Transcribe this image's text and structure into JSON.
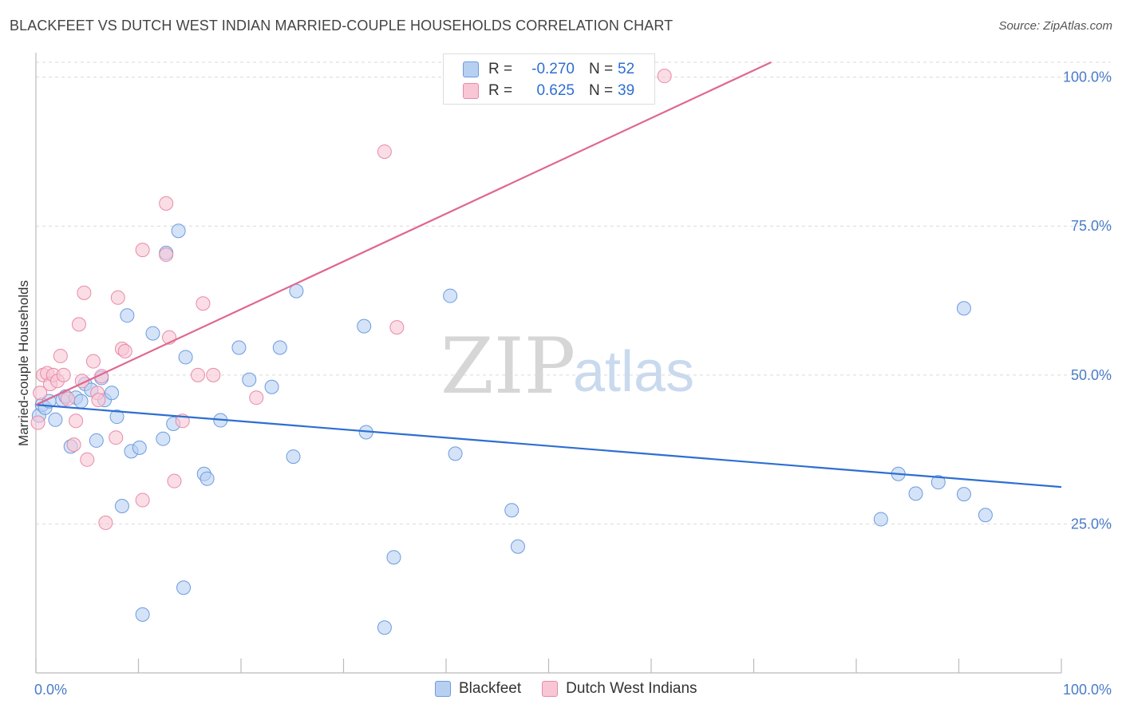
{
  "header": {
    "title": "BLACKFEET VS DUTCH WEST INDIAN MARRIED-COUPLE HOUSEHOLDS CORRELATION CHART",
    "source": "Source: ZipAtlas.com"
  },
  "watermark": {
    "zip": "ZIP",
    "atlas": "atlas"
  },
  "legend": {
    "rows": [
      {
        "r_label": "R =",
        "r_value": "-0.270",
        "n_label": "N =",
        "n_value": "52"
      },
      {
        "r_label": "R =",
        "r_value": "0.625",
        "n_label": "N =",
        "n_value": "39"
      }
    ]
  },
  "bottom_legend": {
    "series1": "Blackfeet",
    "series2": "Dutch West Indians"
  },
  "chart_data": {
    "type": "scatter",
    "title": "BLACKFEET VS DUTCH WEST INDIAN MARRIED-COUPLE HOUSEHOLDS CORRELATION CHART",
    "xlabel": "",
    "ylabel": "Married-couple Households",
    "xlim": [
      0,
      100
    ],
    "ylim": [
      0,
      102.5
    ],
    "x_tick_labels": [
      "0.0%",
      "100.0%"
    ],
    "y_ticks": [
      25,
      50,
      75,
      100
    ],
    "y_tick_labels": [
      "25.0%",
      "50.0%",
      "75.0%",
      "100.0%"
    ],
    "grid": true,
    "colors": {
      "blackfeet_fill": "#b7d0f2",
      "blackfeet_stroke": "#6c9be0",
      "blackfeet_line": "#2e6fd0",
      "dutch_fill": "#f8c6d5",
      "dutch_stroke": "#e88aa8",
      "dutch_line": "#e0678e",
      "tick": "#4a7cc9",
      "grid": "#d9d9d9"
    },
    "series": [
      {
        "name": "Blackfeet",
        "r": -0.27,
        "n": 52,
        "trend": {
          "x": [
            0,
            100
          ],
          "y": [
            45.0,
            31.2
          ]
        },
        "points": [
          {
            "x": 0.3,
            "y": 43.2
          },
          {
            "x": 0.6,
            "y": 45.0
          },
          {
            "x": 0.9,
            "y": 44.5
          },
          {
            "x": 1.3,
            "y": 45.6
          },
          {
            "x": 1.9,
            "y": 42.5
          },
          {
            "x": 2.6,
            "y": 45.8
          },
          {
            "x": 2.9,
            "y": 46.4
          },
          {
            "x": 3.4,
            "y": 38.0
          },
          {
            "x": 3.9,
            "y": 46.2
          },
          {
            "x": 4.4,
            "y": 45.6
          },
          {
            "x": 4.8,
            "y": 48.5
          },
          {
            "x": 5.4,
            "y": 47.5
          },
          {
            "x": 5.9,
            "y": 39.0
          },
          {
            "x": 6.4,
            "y": 49.5
          },
          {
            "x": 6.7,
            "y": 45.8
          },
          {
            "x": 7.4,
            "y": 47.0
          },
          {
            "x": 7.9,
            "y": 43.0
          },
          {
            "x": 8.4,
            "y": 28.0
          },
          {
            "x": 8.9,
            "y": 60.0
          },
          {
            "x": 9.3,
            "y": 37.2
          },
          {
            "x": 10.1,
            "y": 37.8
          },
          {
            "x": 10.4,
            "y": 9.8
          },
          {
            "x": 11.4,
            "y": 57.0
          },
          {
            "x": 12.4,
            "y": 39.3
          },
          {
            "x": 12.7,
            "y": 70.5
          },
          {
            "x": 13.4,
            "y": 41.8
          },
          {
            "x": 13.9,
            "y": 74.2
          },
          {
            "x": 14.4,
            "y": 14.3
          },
          {
            "x": 14.6,
            "y": 53.0
          },
          {
            "x": 16.4,
            "y": 33.4
          },
          {
            "x": 16.7,
            "y": 32.6
          },
          {
            "x": 18.0,
            "y": 42.4
          },
          {
            "x": 19.8,
            "y": 54.6
          },
          {
            "x": 20.8,
            "y": 49.2
          },
          {
            "x": 23.0,
            "y": 48.0
          },
          {
            "x": 23.8,
            "y": 54.6
          },
          {
            "x": 25.1,
            "y": 36.3
          },
          {
            "x": 25.4,
            "y": 64.1
          },
          {
            "x": 32.0,
            "y": 58.2
          },
          {
            "x": 32.2,
            "y": 40.4
          },
          {
            "x": 34.0,
            "y": 7.6
          },
          {
            "x": 34.9,
            "y": 19.4
          },
          {
            "x": 40.4,
            "y": 63.3
          },
          {
            "x": 40.9,
            "y": 36.8
          },
          {
            "x": 46.4,
            "y": 27.3
          },
          {
            "x": 47.0,
            "y": 21.2
          },
          {
            "x": 82.4,
            "y": 25.8
          },
          {
            "x": 84.1,
            "y": 33.4
          },
          {
            "x": 85.8,
            "y": 30.1
          },
          {
            "x": 88.0,
            "y": 32.0
          },
          {
            "x": 90.5,
            "y": 61.2
          },
          {
            "x": 90.5,
            "y": 30.0
          },
          {
            "x": 92.6,
            "y": 26.5
          }
        ]
      },
      {
        "name": "Dutch West Indians",
        "r": 0.625,
        "n": 39,
        "trend": {
          "x": [
            0,
            71.7
          ],
          "y": [
            45.0,
            102.5
          ]
        },
        "points": [
          {
            "x": 0.2,
            "y": 42.0
          },
          {
            "x": 0.4,
            "y": 47.0
          },
          {
            "x": 0.7,
            "y": 50.0
          },
          {
            "x": 1.1,
            "y": 50.3
          },
          {
            "x": 1.4,
            "y": 48.5
          },
          {
            "x": 1.7,
            "y": 50.0
          },
          {
            "x": 2.1,
            "y": 49.0
          },
          {
            "x": 2.4,
            "y": 53.2
          },
          {
            "x": 2.7,
            "y": 50.0
          },
          {
            "x": 3.1,
            "y": 46.0
          },
          {
            "x": 3.7,
            "y": 38.3
          },
          {
            "x": 3.9,
            "y": 42.3
          },
          {
            "x": 4.2,
            "y": 58.5
          },
          {
            "x": 4.5,
            "y": 49.0
          },
          {
            "x": 4.7,
            "y": 63.8
          },
          {
            "x": 5.0,
            "y": 35.8
          },
          {
            "x": 5.6,
            "y": 52.3
          },
          {
            "x": 6.0,
            "y": 47.0
          },
          {
            "x": 6.1,
            "y": 45.8
          },
          {
            "x": 6.4,
            "y": 49.8
          },
          {
            "x": 6.8,
            "y": 25.2
          },
          {
            "x": 7.8,
            "y": 39.5
          },
          {
            "x": 8.0,
            "y": 63.0
          },
          {
            "x": 8.4,
            "y": 54.4
          },
          {
            "x": 8.7,
            "y": 54.0
          },
          {
            "x": 10.4,
            "y": 29.0
          },
          {
            "x": 10.4,
            "y": 71.0
          },
          {
            "x": 12.7,
            "y": 70.2
          },
          {
            "x": 12.7,
            "y": 78.8
          },
          {
            "x": 13.0,
            "y": 56.3
          },
          {
            "x": 13.5,
            "y": 32.2
          },
          {
            "x": 14.3,
            "y": 42.3
          },
          {
            "x": 15.8,
            "y": 50.0
          },
          {
            "x": 16.3,
            "y": 62.0
          },
          {
            "x": 17.3,
            "y": 50.0
          },
          {
            "x": 21.5,
            "y": 46.2
          },
          {
            "x": 34.0,
            "y": 87.5
          },
          {
            "x": 35.2,
            "y": 58.0
          },
          {
            "x": 61.3,
            "y": 100.2
          }
        ]
      }
    ]
  }
}
